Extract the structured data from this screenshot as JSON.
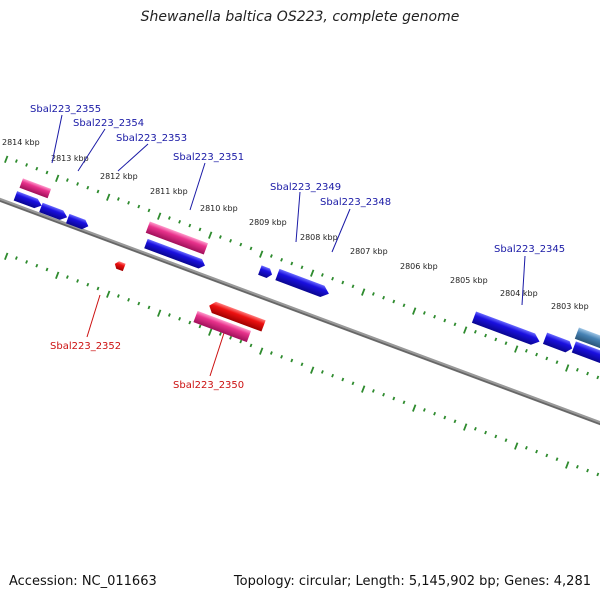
{
  "title": "Shewanella baltica OS223, complete genome",
  "accession": "Accession: NC_011663",
  "topology": "Topology: circular; Length: 5,145,902 bp; Genes: 4,281",
  "colors": {
    "backbone": "#777777",
    "tick": "#2e8b2e",
    "gene_blue": "#1a10e0",
    "gene_pink": "#e8328c",
    "gene_red": "#ee1111",
    "gene_steel": "#4682b4",
    "label_blue": "#1a1aa6",
    "label_red": "#cc1111"
  },
  "kbp_labels": [
    "2814 kbp",
    "2813 kbp",
    "2812 kbp",
    "2811 kbp",
    "2810 kbp",
    "2809 kbp",
    "2808 kbp",
    "2807 kbp",
    "2806 kbp",
    "2805 kbp",
    "2804 kbp",
    "2803 kbp"
  ],
  "gene_labels": {
    "forward": [
      "Sbal223_2355",
      "Sbal223_2354",
      "Sbal223_2353",
      "Sbal223_2351",
      "Sbal223_2349",
      "Sbal223_2348",
      "Sbal223_2345"
    ],
    "reverse": [
      "Sbal223_2352",
      "Sbal223_2350"
    ]
  }
}
